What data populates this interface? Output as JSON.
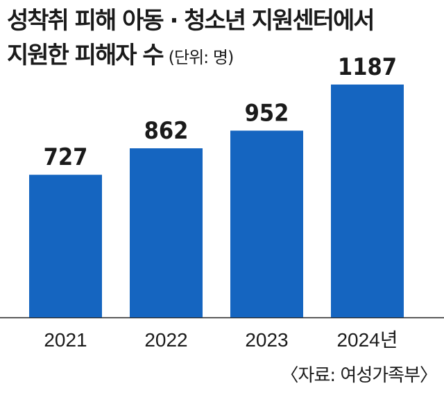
{
  "header": {
    "title_line1": "성착취 피해 아동 · 청소년 지원센터에서",
    "title_line2": "지원한 피해자 수",
    "unit": "(단위: 명)"
  },
  "chart_data": {
    "type": "bar",
    "title": "성착취 피해 아동 · 청소년 지원센터에서 지원한 피해자 수",
    "unit": "(단위: 명)",
    "categories": [
      "2021",
      "2022",
      "2023",
      "2024년"
    ],
    "values": [
      727,
      862,
      952,
      1187
    ],
    "value_labels": [
      "727",
      "862",
      "952",
      "1187"
    ],
    "xlabel": "",
    "ylabel": "",
    "ylim": [
      0,
      1187
    ],
    "grid": false,
    "legend": "none",
    "bar_color": "#1565c0"
  },
  "footer": {
    "source": "〈자료: 여성가족부〉"
  }
}
